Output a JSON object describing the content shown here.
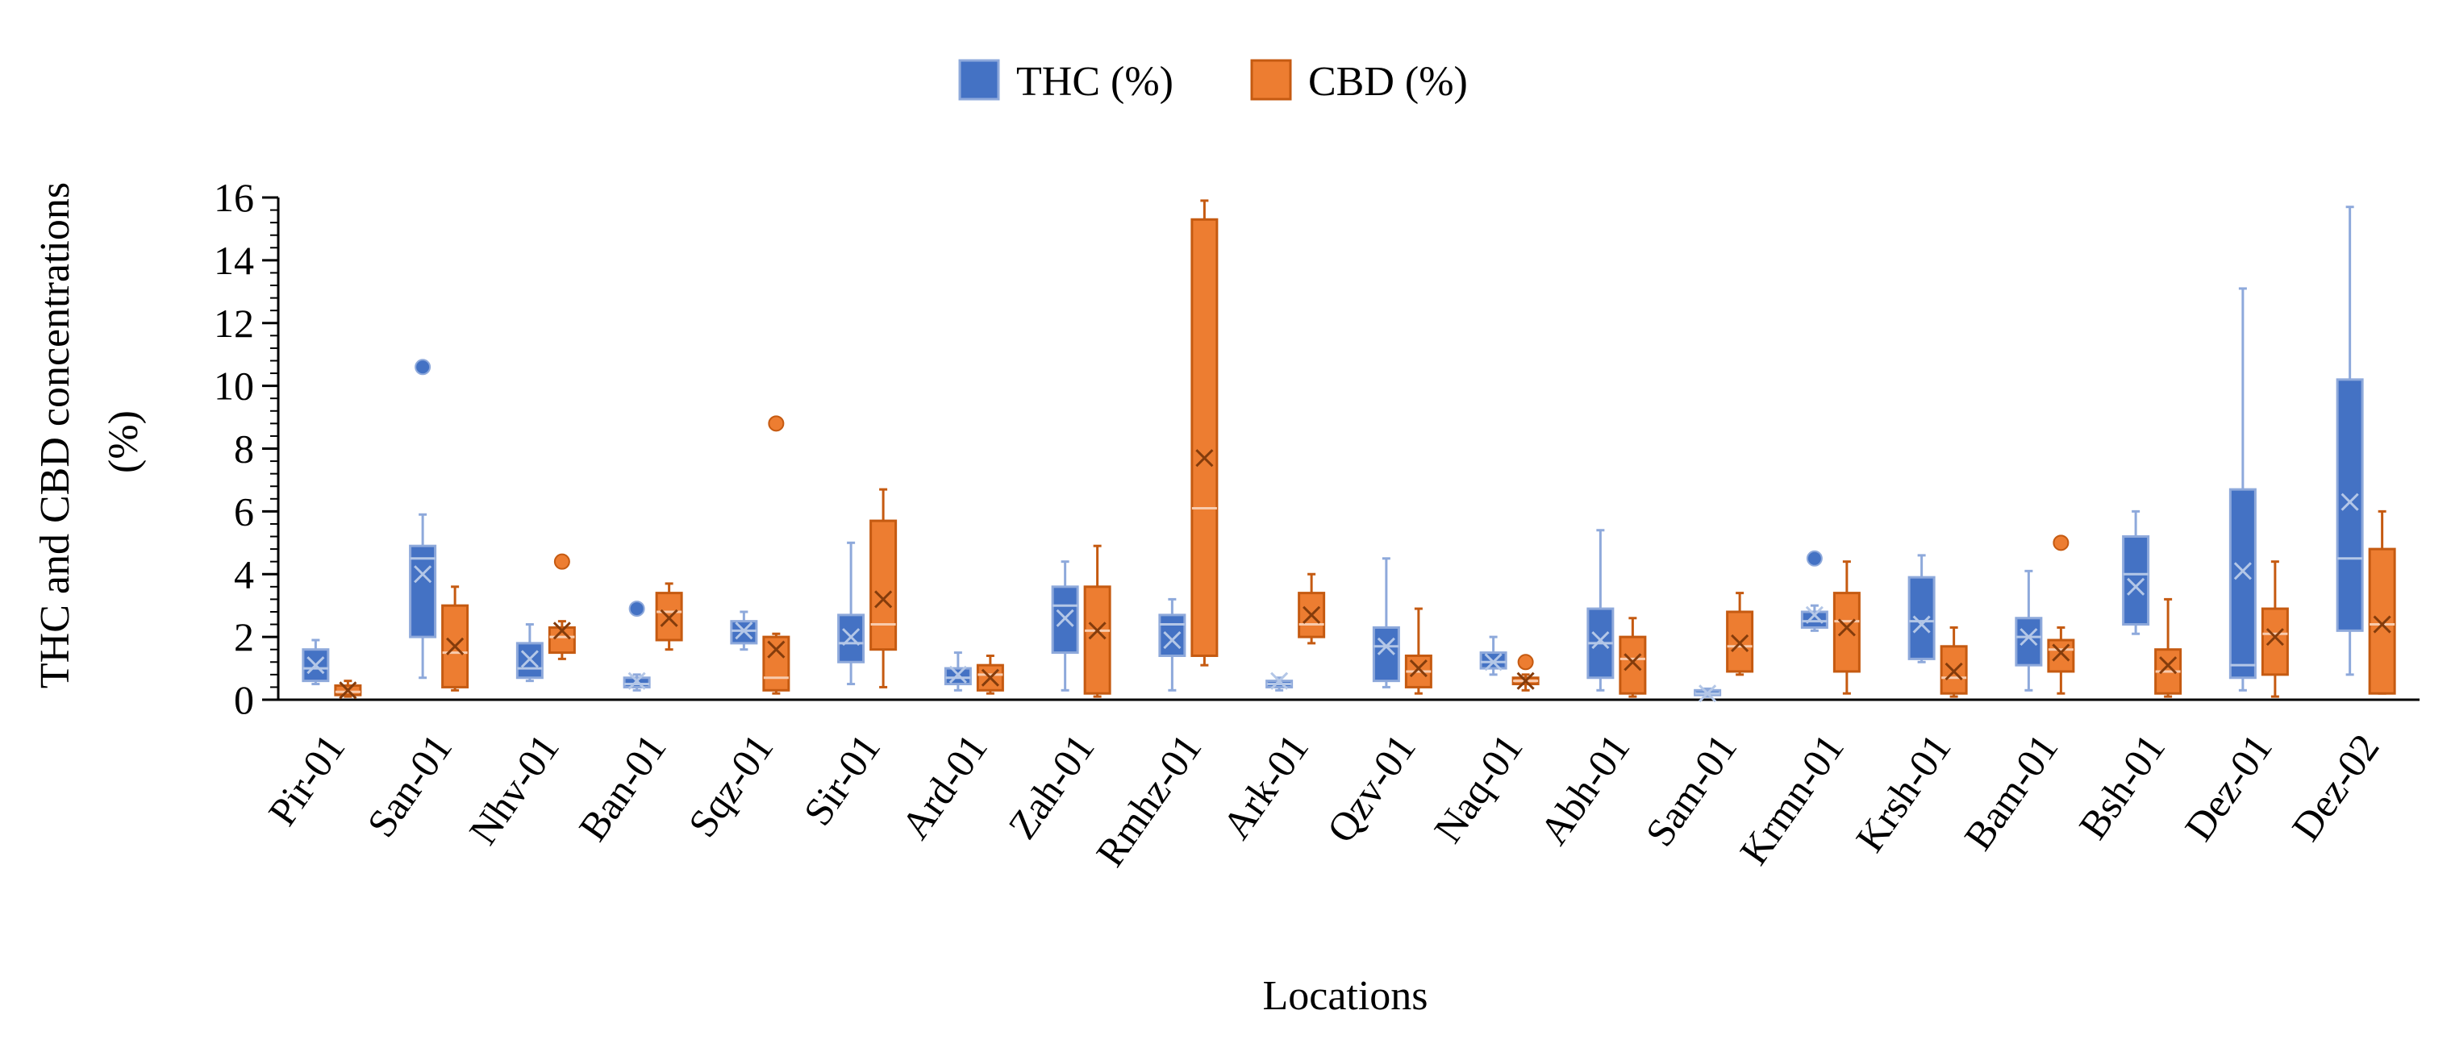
{
  "chart_data": {
    "type": "box",
    "title": "",
    "xlabel": "Locations",
    "ylabel_lines": [
      "THC and CBD concentrations",
      "(%)"
    ],
    "ylim": [
      0,
      16
    ],
    "yticks": [
      "0",
      "2",
      "4",
      "6",
      "8",
      "10",
      "12",
      "14",
      "16"
    ],
    "grid": false,
    "legend_position": "top-center",
    "categories": [
      "Pir-01",
      "San-01",
      "Nhv-01",
      "Ban-01",
      "Sqz-01",
      "Sir-01",
      "Ard-01",
      "Zah-01",
      "Rmhz-01",
      "Ark-01",
      "Qzv-01",
      "Naq-01",
      "Abh-01",
      "Sam-01",
      "Krmn-01",
      "Krsh-01",
      "Bam-01",
      "Bsh-01",
      "Dez-01",
      "Dez-02"
    ],
    "series": [
      {
        "name": "THC (%)",
        "color": "#4472C4",
        "edge": "#8EA9DB",
        "boxes": [
          {
            "min": 0.5,
            "q1": 0.6,
            "median": 1.0,
            "q3": 1.6,
            "max": 1.9,
            "mean": 1.1,
            "outliers": []
          },
          {
            "min": 0.7,
            "q1": 2.0,
            "median": 4.5,
            "q3": 4.9,
            "max": 5.9,
            "mean": 4.0,
            "outliers": [
              10.6
            ]
          },
          {
            "min": 0.6,
            "q1": 0.7,
            "median": 1.0,
            "q3": 1.8,
            "max": 2.4,
            "mean": 1.3,
            "outliers": []
          },
          {
            "min": 0.3,
            "q1": 0.4,
            "median": 0.5,
            "q3": 0.7,
            "max": 0.8,
            "mean": 0.6,
            "outliers": [
              2.9
            ]
          },
          {
            "min": 1.6,
            "q1": 1.8,
            "median": 2.2,
            "q3": 2.5,
            "max": 2.8,
            "mean": 2.2,
            "outliers": []
          },
          {
            "min": 0.5,
            "q1": 1.2,
            "median": 1.8,
            "q3": 2.7,
            "max": 5.0,
            "mean": 2.0,
            "outliers": []
          },
          {
            "min": 0.3,
            "q1": 0.5,
            "median": 0.7,
            "q3": 1.0,
            "max": 1.5,
            "mean": 0.8,
            "outliers": []
          },
          {
            "min": 0.3,
            "q1": 1.5,
            "median": 3.0,
            "q3": 3.6,
            "max": 4.4,
            "mean": 2.6,
            "outliers": []
          },
          {
            "min": 0.3,
            "q1": 1.4,
            "median": 2.4,
            "q3": 2.7,
            "max": 3.2,
            "mean": 1.9,
            "outliers": []
          },
          {
            "min": 0.3,
            "q1": 0.4,
            "median": 0.5,
            "q3": 0.6,
            "max": 0.7,
            "mean": 0.6,
            "outliers": []
          },
          {
            "min": 0.4,
            "q1": 0.6,
            "median": 1.7,
            "q3": 2.3,
            "max": 4.5,
            "mean": 1.7,
            "outliers": []
          },
          {
            "min": 0.8,
            "q1": 1.0,
            "median": 1.2,
            "q3": 1.5,
            "max": 2.0,
            "mean": 1.2,
            "outliers": []
          },
          {
            "min": 0.3,
            "q1": 0.7,
            "median": 1.8,
            "q3": 2.9,
            "max": 5.4,
            "mean": 1.9,
            "outliers": []
          },
          {
            "min": 0.1,
            "q1": 0.15,
            "median": 0.2,
            "q3": 0.3,
            "max": 0.35,
            "mean": 0.2,
            "outliers": []
          },
          {
            "min": 2.2,
            "q1": 2.3,
            "median": 2.5,
            "q3": 2.8,
            "max": 3.0,
            "mean": 2.7,
            "outliers": [
              4.5
            ]
          },
          {
            "min": 1.2,
            "q1": 1.3,
            "median": 2.5,
            "q3": 3.9,
            "max": 4.6,
            "mean": 2.4,
            "outliers": []
          },
          {
            "min": 0.3,
            "q1": 1.1,
            "median": 2.0,
            "q3": 2.6,
            "max": 4.1,
            "mean": 2.0,
            "outliers": []
          },
          {
            "min": 2.1,
            "q1": 2.4,
            "median": 4.0,
            "q3": 5.2,
            "max": 6.0,
            "mean": 3.6,
            "outliers": []
          },
          {
            "min": 0.3,
            "q1": 0.7,
            "median": 1.1,
            "q3": 6.7,
            "max": 13.1,
            "mean": 4.1,
            "outliers": []
          },
          {
            "min": 0.8,
            "q1": 2.2,
            "median": 4.5,
            "q3": 10.2,
            "max": 15.7,
            "mean": 6.3,
            "outliers": []
          }
        ]
      },
      {
        "name": "CBD (%)",
        "color": "#ED7D31",
        "edge": "#C55A11",
        "boxes": [
          {
            "min": 0.1,
            "q1": 0.15,
            "median": 0.25,
            "q3": 0.45,
            "max": 0.6,
            "mean": 0.3,
            "outliers": []
          },
          {
            "min": 0.3,
            "q1": 0.4,
            "median": 1.5,
            "q3": 3.0,
            "max": 3.6,
            "mean": 1.7,
            "outliers": []
          },
          {
            "min": 1.3,
            "q1": 1.5,
            "median": 2.0,
            "q3": 2.3,
            "max": 2.5,
            "mean": 2.2,
            "outliers": [
              4.4
            ]
          },
          {
            "min": 1.6,
            "q1": 1.9,
            "median": 2.8,
            "q3": 3.4,
            "max": 3.7,
            "mean": 2.6,
            "outliers": []
          },
          {
            "min": 0.2,
            "q1": 0.3,
            "median": 0.7,
            "q3": 2.0,
            "max": 2.1,
            "mean": 1.6,
            "outliers": [
              8.8
            ]
          },
          {
            "min": 0.4,
            "q1": 1.6,
            "median": 2.4,
            "q3": 5.7,
            "max": 6.7,
            "mean": 3.2,
            "outliers": []
          },
          {
            "min": 0.2,
            "q1": 0.3,
            "median": 0.8,
            "q3": 1.1,
            "max": 1.4,
            "mean": 0.7,
            "outliers": []
          },
          {
            "min": 0.1,
            "q1": 0.2,
            "median": 2.2,
            "q3": 3.6,
            "max": 4.9,
            "mean": 2.2,
            "outliers": []
          },
          {
            "min": 1.1,
            "q1": 1.4,
            "median": 6.1,
            "q3": 15.3,
            "max": 15.9,
            "mean": 7.7,
            "outliers": []
          },
          {
            "min": 1.8,
            "q1": 2.0,
            "median": 2.4,
            "q3": 3.4,
            "max": 4.0,
            "mean": 2.7,
            "outliers": []
          },
          {
            "min": 0.2,
            "q1": 0.4,
            "median": 0.9,
            "q3": 1.4,
            "max": 2.9,
            "mean": 1.0,
            "outliers": []
          },
          {
            "min": 0.3,
            "q1": 0.5,
            "median": 0.6,
            "q3": 0.7,
            "max": 0.8,
            "mean": 0.6,
            "outliers": [
              1.2
            ]
          },
          {
            "min": 0.1,
            "q1": 0.2,
            "median": 1.3,
            "q3": 2.0,
            "max": 2.6,
            "mean": 1.2,
            "outliers": []
          },
          {
            "min": 0.8,
            "q1": 0.9,
            "median": 1.7,
            "q3": 2.8,
            "max": 3.4,
            "mean": 1.8,
            "outliers": []
          },
          {
            "min": 0.2,
            "q1": 0.9,
            "median": 2.5,
            "q3": 3.4,
            "max": 4.4,
            "mean": 2.3,
            "outliers": []
          },
          {
            "min": 0.1,
            "q1": 0.2,
            "median": 0.7,
            "q3": 1.7,
            "max": 2.3,
            "mean": 0.9,
            "outliers": []
          },
          {
            "min": 0.2,
            "q1": 0.9,
            "median": 1.6,
            "q3": 1.9,
            "max": 2.3,
            "mean": 1.5,
            "outliers": [
              5.0
            ]
          },
          {
            "min": 0.1,
            "q1": 0.2,
            "median": 0.9,
            "q3": 1.6,
            "max": 3.2,
            "mean": 1.1,
            "outliers": []
          },
          {
            "min": 0.1,
            "q1": 0.8,
            "median": 2.1,
            "q3": 2.9,
            "max": 4.4,
            "mean": 2.0,
            "outliers": []
          },
          {
            "min": 0.2,
            "q1": 0.2,
            "median": 2.4,
            "q3": 4.8,
            "max": 6.0,
            "mean": 2.4,
            "outliers": []
          }
        ]
      }
    ]
  }
}
